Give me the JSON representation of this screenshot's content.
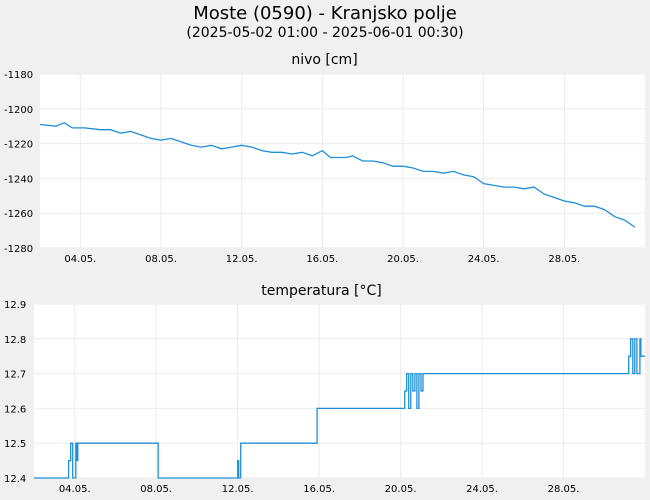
{
  "title": "Moste (0590) - Kranjsko polje",
  "subtitle": "(2025-05-02 01:00 - 2025-06-01 00:30)",
  "chart_data": [
    {
      "type": "line",
      "title": "nivo [cm]",
      "x_unit": "days since 2025-05-01 00:00",
      "xlim": [
        1.0,
        31.0
      ],
      "xticks": [
        3,
        7,
        11,
        15,
        19,
        23,
        27
      ],
      "xtick_labels": [
        "04.05.",
        "08.05.",
        "12.05.",
        "16.05.",
        "20.05.",
        "24.05.",
        "28.05."
      ],
      "ylim": [
        -1280,
        -1180
      ],
      "yticks": [
        -1180,
        -1200,
        -1220,
        -1240,
        -1260,
        -1280
      ],
      "ytick_labels": [
        "-1180",
        "-1200",
        "-1220",
        "-1240",
        "-1260",
        "-1280"
      ],
      "color": "#1f8fd6",
      "series": [
        {
          "name": "nivo",
          "x": [
            1.0,
            1.8,
            2.2,
            2.6,
            3.2,
            4.0,
            4.5,
            5.0,
            5.5,
            6.0,
            6.5,
            7.0,
            7.5,
            8.0,
            8.5,
            9.0,
            9.5,
            10.0,
            10.5,
            11.0,
            11.5,
            12.0,
            12.5,
            13.0,
            13.5,
            14.0,
            14.5,
            15.0,
            15.4,
            15.8,
            16.2,
            16.5,
            17.0,
            17.5,
            18.0,
            18.5,
            19.0,
            19.5,
            20.0,
            20.5,
            21.0,
            21.5,
            22.0,
            22.5,
            23.0,
            23.5,
            24.0,
            24.5,
            25.0,
            25.5,
            26.0,
            26.5,
            27.0,
            27.5,
            28.0,
            28.5,
            29.0,
            29.5,
            30.0,
            30.5
          ],
          "values": [
            -1209,
            -1210,
            -1208,
            -1211,
            -1211,
            -1212,
            -1212,
            -1214,
            -1213,
            -1215,
            -1217,
            -1218,
            -1217,
            -1219,
            -1221,
            -1222,
            -1221,
            -1223,
            -1222,
            -1221,
            -1222,
            -1224,
            -1225,
            -1225,
            -1226,
            -1225,
            -1227,
            -1224,
            -1228,
            -1228,
            -1228,
            -1227,
            -1230,
            -1230,
            -1231,
            -1233,
            -1233,
            -1234,
            -1236,
            -1236,
            -1237,
            -1236,
            -1238,
            -1239,
            -1243,
            -1244,
            -1245,
            -1245,
            -1246,
            -1245,
            -1249,
            -1251,
            -1253,
            -1254,
            -1256,
            -1256,
            -1258,
            -1262,
            -1264,
            -1268
          ]
        }
      ]
    },
    {
      "type": "line",
      "title": "temperatura [°C]",
      "x_unit": "days since 2025-05-01 00:00",
      "xlim": [
        1.0,
        31.0
      ],
      "xticks": [
        3,
        7,
        11,
        15,
        19,
        23,
        27
      ],
      "xtick_labels": [
        "04.05.",
        "08.05.",
        "12.05.",
        "16.05.",
        "20.05.",
        "24.05.",
        "28.05."
      ],
      "ylim": [
        12.4,
        12.9
      ],
      "yticks": [
        12.9,
        12.8,
        12.7,
        12.6,
        12.5,
        12.4
      ],
      "ytick_labels": [
        "12.9",
        "12.8",
        "12.7",
        "12.6",
        "12.5",
        "12.4"
      ],
      "color": "#1f8fd6",
      "series": [
        {
          "name": "temperatura",
          "x": [
            1.0,
            2.7,
            2.7,
            2.8,
            2.8,
            2.9,
            2.9,
            3.05,
            3.05,
            3.1,
            3.1,
            3.15,
            3.15,
            7.1,
            7.1,
            11.0,
            11.0,
            11.05,
            11.05,
            11.15,
            11.15,
            11.2,
            11.2,
            14.9,
            14.9,
            19.2,
            19.2,
            19.3,
            19.3,
            19.4,
            19.4,
            19.5,
            19.5,
            19.6,
            19.6,
            19.7,
            19.7,
            19.8,
            19.8,
            19.9,
            19.9,
            20.0,
            20.0,
            20.1,
            20.1,
            20.2,
            20.2,
            30.2,
            30.2,
            30.3,
            30.3,
            30.4,
            30.4,
            30.5,
            30.5,
            30.6,
            30.6,
            30.75,
            30.75,
            30.8,
            30.8,
            31.0
          ],
          "values": [
            12.4,
            12.4,
            12.45,
            12.45,
            12.5,
            12.5,
            12.4,
            12.4,
            12.5,
            12.5,
            12.45,
            12.45,
            12.5,
            12.5,
            12.4,
            12.4,
            12.45,
            12.45,
            12.4,
            12.4,
            12.5,
            12.5,
            12.5,
            12.5,
            12.6,
            12.6,
            12.65,
            12.65,
            12.7,
            12.7,
            12.6,
            12.6,
            12.7,
            12.7,
            12.65,
            12.65,
            12.7,
            12.7,
            12.6,
            12.6,
            12.7,
            12.7,
            12.65,
            12.65,
            12.7,
            12.7,
            12.7,
            12.7,
            12.75,
            12.75,
            12.8,
            12.8,
            12.7,
            12.7,
            12.8,
            12.8,
            12.7,
            12.7,
            12.8,
            12.8,
            12.75,
            12.75
          ]
        }
      ]
    }
  ]
}
